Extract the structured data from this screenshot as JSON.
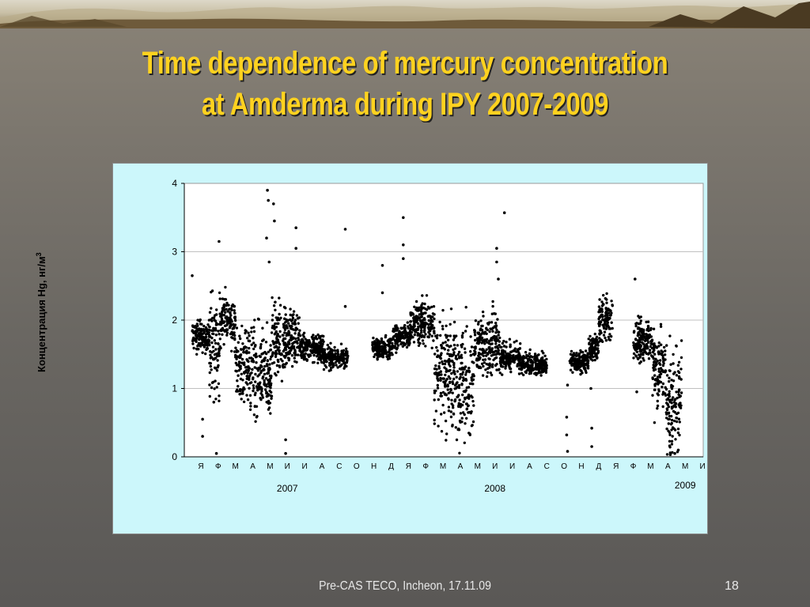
{
  "slide": {
    "title_line1": "Time dependence of mercury concentration",
    "title_line2": "at Amderma during IPY 2007-2009",
    "footer": "Pre-CAS TECO, Incheon, 17.11.09",
    "page_number": "18"
  },
  "colors": {
    "title": "#ffd21f",
    "chart_background": "#ccf7fb",
    "points": "#000000",
    "gridlines": "#c0c0c0"
  },
  "chart_data": {
    "type": "scatter",
    "ylabel": "Концентрация Hg, нг/м",
    "ylabel_superscript": "3",
    "ylim": [
      0,
      4
    ],
    "yticks": [
      "0",
      "1",
      "2",
      "3",
      "4"
    ],
    "grid": "horizontal",
    "month_labels": [
      "Я",
      "Ф",
      "М",
      "А",
      "М",
      "И",
      "И",
      "А",
      "С",
      "О",
      "Н",
      "Д",
      "Я",
      "Ф",
      "М",
      "А",
      "М",
      "И",
      "И",
      "А",
      "С",
      "О",
      "Н",
      "Д",
      "Я",
      "Ф",
      "М",
      "А",
      "М",
      "И"
    ],
    "year_labels": [
      {
        "text": "2007",
        "month_index": 5.5
      },
      {
        "text": "2008",
        "month_index": 17.5
      },
      {
        "text": "2009",
        "month_index": 28.5
      }
    ],
    "series": [
      {
        "segments": [
          {
            "start": 0.0,
            "end": 1.0,
            "base": 1.75,
            "spread": 0.15
          },
          {
            "start": 1.0,
            "end": 1.6,
            "base": 1.65,
            "spread": 0.5
          },
          {
            "start": 1.6,
            "end": 2.5,
            "base": 2.0,
            "spread": 0.25
          },
          {
            "start": 2.5,
            "end": 3.3,
            "base": 1.35,
            "spread": 0.35
          },
          {
            "start": 3.3,
            "end": 4.6,
            "base": 1.2,
            "spread": 0.45
          },
          {
            "start": 4.6,
            "end": 5.4,
            "base": 1.7,
            "spread": 0.35
          },
          {
            "start": 5.4,
            "end": 6.2,
            "base": 1.75,
            "spread": 0.25
          },
          {
            "start": 6.2,
            "end": 7.6,
            "base": 1.6,
            "spread": 0.15
          },
          {
            "start": 7.6,
            "end": 9.0,
            "base": 1.45,
            "spread": 0.1
          },
          {
            "start": 10.4,
            "end": 11.6,
            "base": 1.6,
            "spread": 0.1
          },
          {
            "start": 11.6,
            "end": 12.6,
            "base": 1.75,
            "spread": 0.12
          },
          {
            "start": 12.6,
            "end": 14.0,
            "base": 1.95,
            "spread": 0.2
          },
          {
            "start": 14.0,
            "end": 15.0,
            "base": 1.25,
            "spread": 0.55
          },
          {
            "start": 15.0,
            "end": 16.3,
            "base": 1.1,
            "spread": 0.55
          },
          {
            "start": 16.3,
            "end": 17.8,
            "base": 1.65,
            "spread": 0.3
          },
          {
            "start": 17.8,
            "end": 19.0,
            "base": 1.45,
            "spread": 0.15
          },
          {
            "start": 19.0,
            "end": 20.5,
            "base": 1.35,
            "spread": 0.1
          },
          {
            "start": 21.8,
            "end": 22.9,
            "base": 1.4,
            "spread": 0.1
          },
          {
            "start": 22.9,
            "end": 23.5,
            "base": 1.6,
            "spread": 0.12
          },
          {
            "start": 23.5,
            "end": 24.3,
            "base": 2.0,
            "spread": 0.25
          },
          {
            "start": 25.5,
            "end": 26.6,
            "base": 1.7,
            "spread": 0.2
          },
          {
            "start": 26.6,
            "end": 27.4,
            "base": 1.3,
            "spread": 0.4
          },
          {
            "start": 27.4,
            "end": 28.3,
            "base": 0.8,
            "spread": 0.55
          }
        ],
        "outliers": [
          [
            0.0,
            2.65
          ],
          [
            0.6,
            0.3
          ],
          [
            0.6,
            0.55
          ],
          [
            1.25,
            0.8
          ],
          [
            1.55,
            3.15
          ],
          [
            1.4,
            0.05
          ],
          [
            4.35,
            3.9
          ],
          [
            4.4,
            3.75
          ],
          [
            4.3,
            3.2
          ],
          [
            4.7,
            3.7
          ],
          [
            4.75,
            3.45
          ],
          [
            4.45,
            2.85
          ],
          [
            5.4,
            0.05
          ],
          [
            5.4,
            0.25
          ],
          [
            6.0,
            3.35
          ],
          [
            6.0,
            3.05
          ],
          [
            8.85,
            3.33
          ],
          [
            8.85,
            2.2
          ],
          [
            11.0,
            2.8
          ],
          [
            11.0,
            2.4
          ],
          [
            12.2,
            3.5
          ],
          [
            12.2,
            3.1
          ],
          [
            12.2,
            2.9
          ],
          [
            17.6,
            3.05
          ],
          [
            17.6,
            2.85
          ],
          [
            17.7,
            2.6
          ],
          [
            18.05,
            3.57
          ],
          [
            21.65,
            0.58
          ],
          [
            21.65,
            0.32
          ],
          [
            21.7,
            0.08
          ],
          [
            21.7,
            1.05
          ],
          [
            23.1,
            0.42
          ],
          [
            23.1,
            0.15
          ],
          [
            23.05,
            1.0
          ],
          [
            25.6,
            2.6
          ],
          [
            25.7,
            0.95
          ],
          [
            27.9,
            0.05
          ],
          [
            28.1,
            0.1
          ]
        ]
      }
    ]
  }
}
